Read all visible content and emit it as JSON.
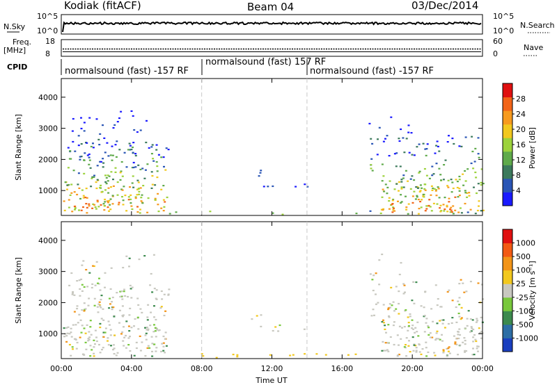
{
  "header": {
    "station": "Kodiak (fitACF)",
    "beam": "Beam 04",
    "date": "03/Dec/2014"
  },
  "top_panels": {
    "nsky_label": "N.Sky",
    "nsky_ticks": [
      "10^5",
      "10^0"
    ],
    "nsearch_label": "N.Search",
    "nsearch_ticks": [
      "10^5",
      "10^0"
    ],
    "freq_label": "Freq.",
    "freq_unit": "[MHz]",
    "freq_ticks": [
      "18",
      "8"
    ],
    "nave_label": "Nave",
    "nave_ticks": [
      "60",
      "0"
    ],
    "cpid_label": "CPID",
    "cpid_segments": [
      {
        "label": "normalsound (fast) -157 RF"
      },
      {
        "label": "normalsound (fast) 157 RF"
      },
      {
        "label": "normalsound (fast) -157 RF"
      }
    ]
  },
  "chart_data": [
    {
      "type": "heatmap",
      "panel": "power",
      "ylabel": "Slant Range [km]",
      "xlabel": "",
      "x_ticks": [
        "00:00",
        "04:00",
        "08:00",
        "12:00",
        "16:00",
        "20:00",
        "00:00"
      ],
      "y_ticks": [
        1000,
        2000,
        3000,
        4000
      ],
      "ylim": [
        200,
        4600
      ],
      "colorbar_label": "Power [dB]",
      "colorbar_ticks": [
        "28",
        "24",
        "20",
        "16",
        "12",
        "8",
        "4"
      ],
      "colors": [
        "#1a1aff",
        "#2a55b5",
        "#3c7a5c",
        "#5faa4a",
        "#9cd23c",
        "#f2c81e",
        "#f79a1e",
        "#f26418",
        "#e01010"
      ]
    },
    {
      "type": "heatmap",
      "panel": "velocity",
      "ylabel": "Slant Range [km]",
      "xlabel": "Time UT",
      "x_ticks": [
        "00:00",
        "04:00",
        "08:00",
        "12:00",
        "16:00",
        "20:00",
        "00:00"
      ],
      "y_ticks": [
        1000,
        2000,
        3000,
        4000
      ],
      "ylim": [
        200,
        4600
      ],
      "colorbar_label": "Velocity [m s⁻¹]",
      "colorbar_ticks": [
        "1000",
        "500",
        "100",
        "25",
        "-25",
        "-100",
        "-500",
        "-1000"
      ],
      "colors": [
        "#1a3fbf",
        "#2d6ea5",
        "#3c8a4e",
        "#78c83c",
        "#c8c8c0",
        "#f2c81e",
        "#f29418",
        "#f25a14",
        "#e01010"
      ]
    }
  ]
}
